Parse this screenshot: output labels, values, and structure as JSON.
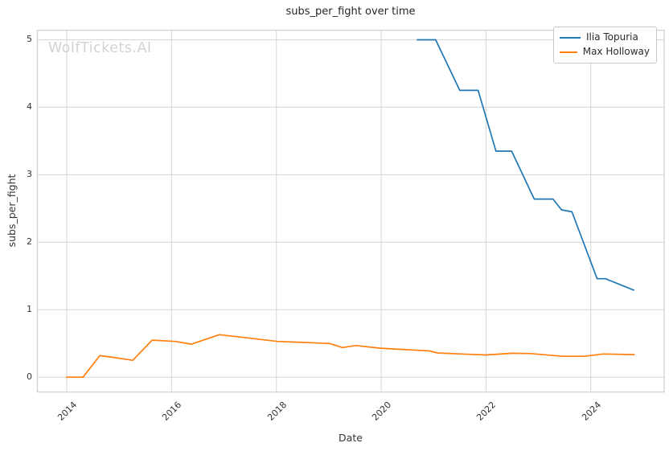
{
  "watermark": "WolfTickets.AI",
  "colors": {
    "background": "#ffffff",
    "grid": "#d6d6d6",
    "frame": "#cfcfcf",
    "title_text": "#262626",
    "tick_text": "#333333",
    "watermark_text": "#d2d2d2",
    "series_blue": "#1f77b4",
    "series_orange": "#ff7f0e"
  },
  "legend": {
    "position": "upper right",
    "entries": [
      "Ilia Topuria",
      "Max Holloway"
    ]
  },
  "chart_data": {
    "type": "line",
    "title": "subs_per_fight over time",
    "xlabel": "Date",
    "ylabel": "subs_per_fight",
    "xlim": [
      2013.44,
      2025.4
    ],
    "ylim": [
      -0.22,
      5.14
    ],
    "xticks": [
      2014,
      2016,
      2018,
      2020,
      2022,
      2024
    ],
    "yticks": [
      0,
      1,
      2,
      3,
      4,
      5
    ],
    "grid": true,
    "legend_position": "upper right",
    "series": [
      {
        "name": "Ilia Topuria",
        "color": "#1f77b4",
        "points": [
          [
            2020.69,
            5.0
          ],
          [
            2021.04,
            5.0
          ],
          [
            2021.5,
            4.25
          ],
          [
            2021.85,
            4.25
          ],
          [
            2022.19,
            3.35
          ],
          [
            2022.49,
            3.35
          ],
          [
            2022.92,
            2.64
          ],
          [
            2023.28,
            2.64
          ],
          [
            2023.44,
            2.48
          ],
          [
            2023.64,
            2.45
          ],
          [
            2024.12,
            1.46
          ],
          [
            2024.28,
            1.46
          ],
          [
            2024.82,
            1.29
          ]
        ]
      },
      {
        "name": "Max Holloway",
        "color": "#ff7f0e",
        "points": [
          [
            2014.0,
            0.0
          ],
          [
            2014.31,
            0.0
          ],
          [
            2014.63,
            0.32
          ],
          [
            2014.83,
            0.3
          ],
          [
            2015.26,
            0.25
          ],
          [
            2015.63,
            0.55
          ],
          [
            2016.07,
            0.53
          ],
          [
            2016.38,
            0.49
          ],
          [
            2016.91,
            0.63
          ],
          [
            2017.37,
            0.59
          ],
          [
            2018.02,
            0.53
          ],
          [
            2018.4,
            0.52
          ],
          [
            2019.02,
            0.5
          ],
          [
            2019.26,
            0.44
          ],
          [
            2019.52,
            0.47
          ],
          [
            2019.98,
            0.43
          ],
          [
            2020.92,
            0.39
          ],
          [
            2021.07,
            0.36
          ],
          [
            2021.52,
            0.345
          ],
          [
            2021.99,
            0.33
          ],
          [
            2022.5,
            0.355
          ],
          [
            2022.85,
            0.35
          ],
          [
            2023.46,
            0.31
          ],
          [
            2023.88,
            0.31
          ],
          [
            2024.23,
            0.345
          ],
          [
            2024.83,
            0.335
          ]
        ]
      }
    ]
  }
}
